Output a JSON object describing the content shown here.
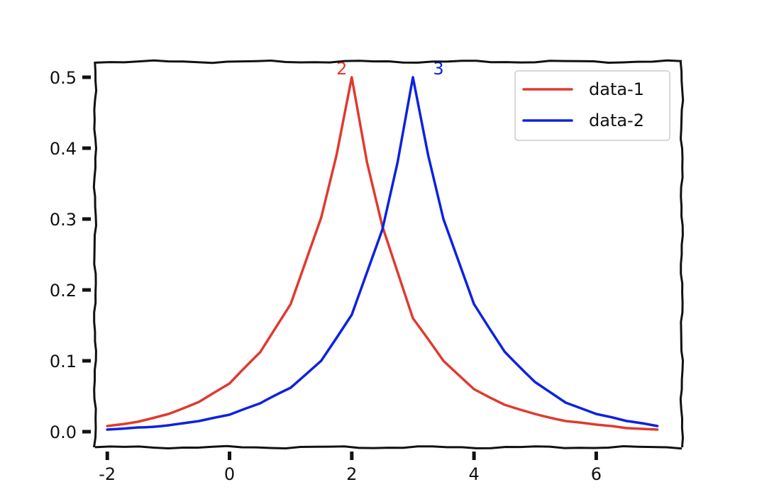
{
  "chart_data": {
    "type": "line",
    "title": "",
    "xlabel": "",
    "ylabel": "",
    "xlim": [
      -2.2,
      7.4
    ],
    "ylim": [
      -0.022,
      0.522
    ],
    "xticks": [
      -2,
      0,
      2,
      4,
      6
    ],
    "xtick_labels": [
      "-2",
      "0",
      "2",
      "4",
      "6"
    ],
    "yticks": [
      0.0,
      0.1,
      0.2,
      0.3,
      0.4,
      0.5
    ],
    "ytick_labels": [
      "0.0",
      "0.1",
      "0.2",
      "0.3",
      "0.4",
      "0.5"
    ],
    "grid": false,
    "legend_position": "top-right",
    "series": [
      {
        "name": "data-1",
        "color": "#e03a2e",
        "x": [
          -2,
          -1.5,
          -1,
          -0.5,
          0,
          0.5,
          1,
          1.5,
          1.75,
          2,
          2.25,
          2.5,
          3,
          3.5,
          4,
          4.5,
          5,
          5.5,
          6,
          6.5,
          7
        ],
        "y": [
          0.008,
          0.014,
          0.025,
          0.042,
          0.068,
          0.112,
          0.18,
          0.302,
          0.39,
          0.5,
          0.38,
          0.29,
          0.16,
          0.1,
          0.06,
          0.038,
          0.025,
          0.015,
          0.01,
          0.005,
          0.003
        ]
      },
      {
        "name": "data-2",
        "color": "#0c22e0",
        "x": [
          -2,
          -1.5,
          -1,
          -0.5,
          0,
          0.5,
          1,
          1.5,
          2,
          2.5,
          2.75,
          3,
          3.25,
          3.5,
          4,
          4.5,
          5,
          5.5,
          6,
          6.5,
          7
        ],
        "y": [
          0.003,
          0.006,
          0.009,
          0.015,
          0.024,
          0.04,
          0.062,
          0.1,
          0.165,
          0.285,
          0.38,
          0.5,
          0.39,
          0.3,
          0.18,
          0.113,
          0.07,
          0.041,
          0.025,
          0.015,
          0.008
        ]
      }
    ],
    "annotations": [
      {
        "text": "2",
        "x": 2,
        "y": 0.5,
        "color": "#e03a2e"
      },
      {
        "text": "3",
        "x": 3,
        "y": 0.5,
        "color": "#0c22e0"
      }
    ]
  }
}
